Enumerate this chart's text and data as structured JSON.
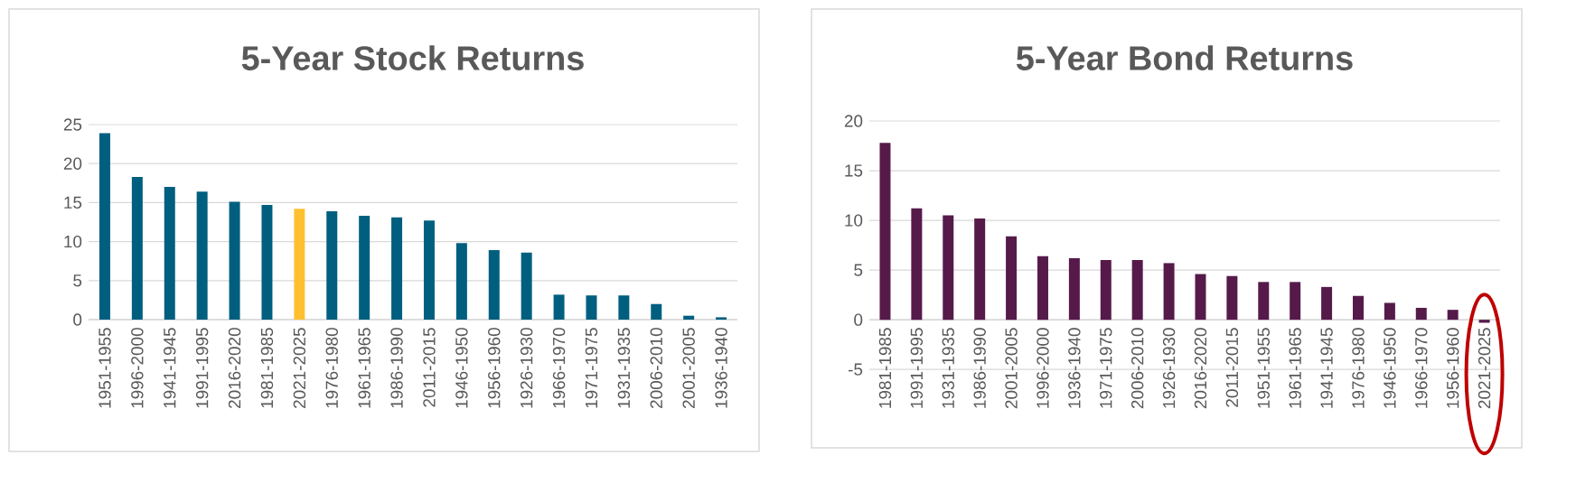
{
  "chart_data": [
    {
      "type": "bar",
      "title": "5-Year Stock Returns",
      "categories": [
        "1951-1955",
        "1996-2000",
        "1941-1945",
        "1991-1995",
        "2016-2020",
        "1981-1985",
        "2021-2025",
        "1976-1980",
        "1961-1965",
        "1986-1990",
        "2011-2015",
        "1946-1950",
        "1956-1960",
        "1926-1930",
        "1966-1970",
        "1971-1975",
        "1931-1935",
        "2006-2010",
        "2001-2005",
        "1936-1940"
      ],
      "values": [
        23.9,
        18.3,
        17.0,
        16.4,
        15.1,
        14.7,
        14.2,
        13.9,
        13.3,
        13.1,
        12.7,
        9.8,
        8.9,
        8.6,
        3.2,
        3.1,
        3.1,
        2.0,
        0.5,
        0.3
      ],
      "colors": [
        "#005f7f",
        "#005f7f",
        "#005f7f",
        "#005f7f",
        "#005f7f",
        "#005f7f",
        "#ffc02f",
        "#005f7f",
        "#005f7f",
        "#005f7f",
        "#005f7f",
        "#005f7f",
        "#005f7f",
        "#005f7f",
        "#005f7f",
        "#005f7f",
        "#005f7f",
        "#005f7f",
        "#005f7f",
        "#005f7f"
      ],
      "ylim": [
        0,
        25
      ],
      "yticks": [
        0,
        5,
        10,
        15,
        20,
        25
      ],
      "grid": "y"
    },
    {
      "type": "bar",
      "title": "5-Year Bond Returns",
      "categories": [
        "1981-1985",
        "1991-1995",
        "1931-1935",
        "1986-1990",
        "2001-2005",
        "1996-2000",
        "1936-1940",
        "1971-1975",
        "2006-2010",
        "1926-1930",
        "2016-2020",
        "2011-2015",
        "1951-1955",
        "1961-1965",
        "1941-1945",
        "1976-1980",
        "1946-1950",
        "1966-1970",
        "1956-1960",
        "2021-2025"
      ],
      "values": [
        17.8,
        11.2,
        10.5,
        10.2,
        8.4,
        6.4,
        6.2,
        6.0,
        6.0,
        5.7,
        4.6,
        4.4,
        3.8,
        3.8,
        3.3,
        2.4,
        1.7,
        1.2,
        1.0,
        -0.3
      ],
      "color": "#561a4a",
      "ylim": [
        -5,
        20
      ],
      "yticks": [
        -5,
        0,
        5,
        10,
        15,
        20
      ],
      "grid": "y"
    }
  ]
}
